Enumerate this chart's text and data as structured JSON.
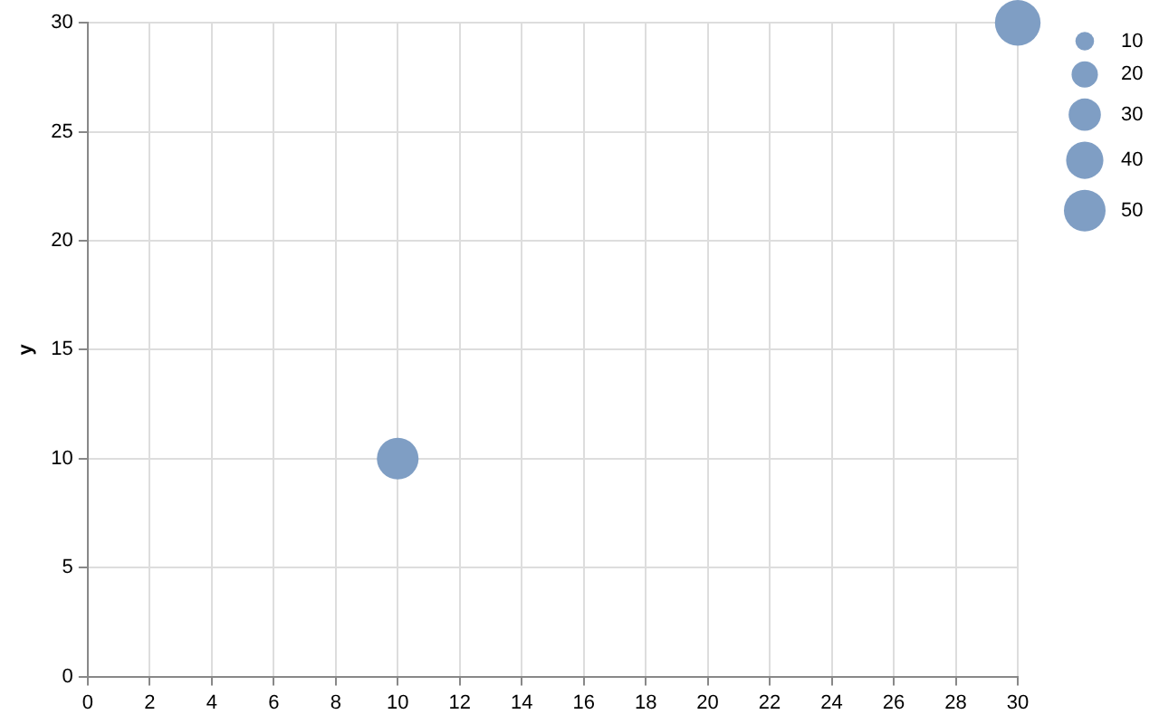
{
  "chart_data": {
    "type": "bubble",
    "ylabel": "y",
    "x": [
      10,
      30
    ],
    "series": [
      {
        "color": "#7f9ec4",
        "values": [
          10,
          30
        ],
        "sizes": [
          50,
          60
        ]
      }
    ],
    "size_legend": [
      10,
      20,
      30,
      40,
      50
    ],
    "xlim": [
      0,
      30
    ],
    "xticks": [
      0,
      2,
      4,
      6,
      8,
      10,
      12,
      14,
      16,
      18,
      20,
      22,
      24,
      26,
      28,
      30
    ],
    "ylim": [
      0,
      30
    ],
    "yticks": [
      0,
      5,
      10,
      15,
      20,
      25,
      30
    ],
    "grid": true
  }
}
